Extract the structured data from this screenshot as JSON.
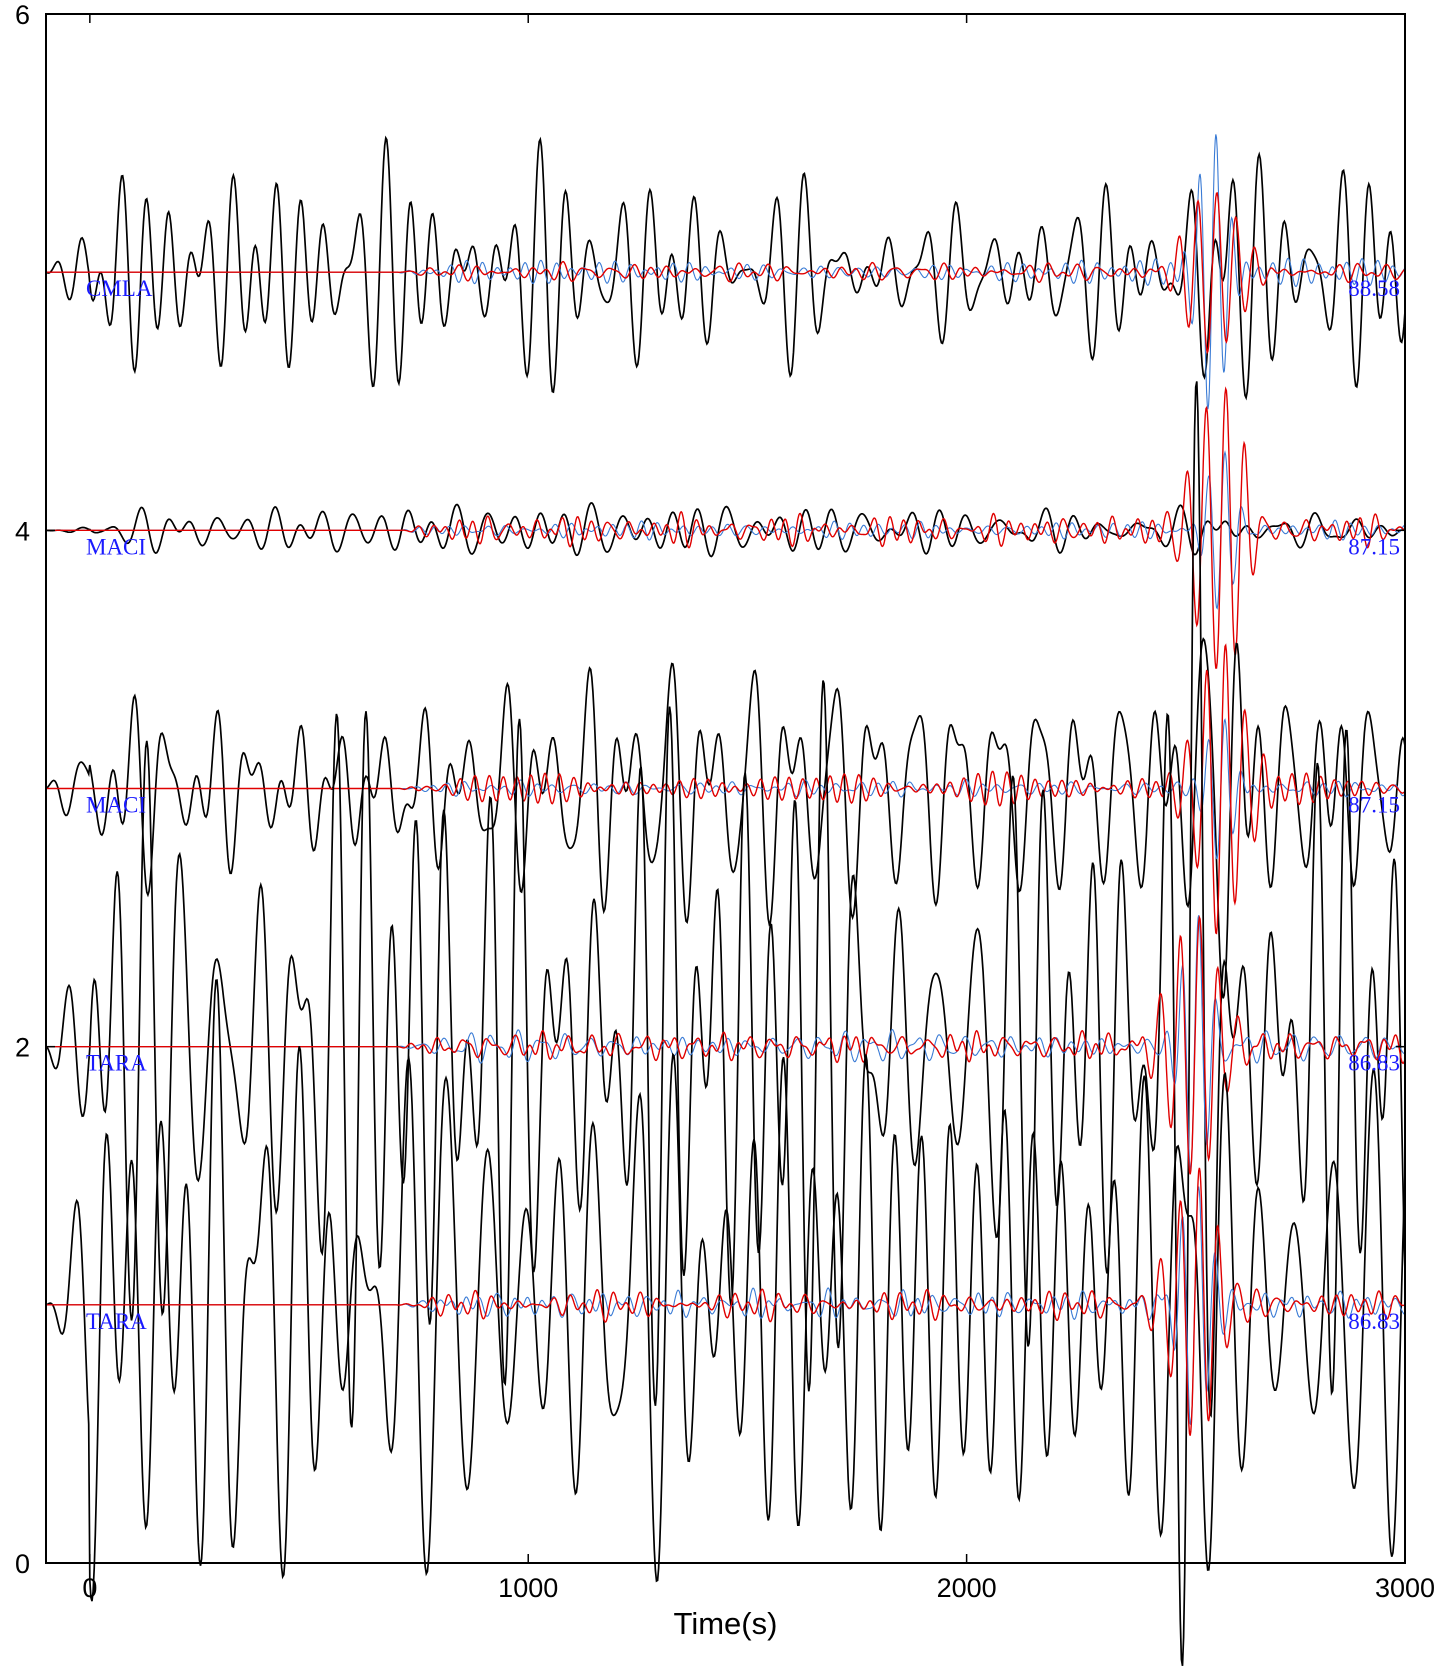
{
  "chart_data": {
    "type": "line",
    "title": "",
    "xlabel": "Time(s)",
    "ylabel": "",
    "xlim": [
      -100,
      3000
    ],
    "ylim": [
      0,
      6
    ],
    "xticks": [
      0,
      1000,
      2000,
      3000
    ],
    "yticks": [
      0,
      2,
      4,
      6
    ],
    "grid": false,
    "legend": "none",
    "colors": {
      "observed": "#000000",
      "synthetic_blue": "#3a7bd5",
      "synthetic_red": "#e00000",
      "label": "#1a1aff"
    },
    "traces": [
      {
        "station": "CMLA",
        "distance": "88.58",
        "offset": 5.0,
        "observed_amp": 0.28,
        "blue_amp": 0.2,
        "red_amp": 0.13,
        "wave_start": 700,
        "arrival": 2560,
        "seed": 11
      },
      {
        "station": "MACI",
        "distance": "87.15",
        "offset": 4.0,
        "observed_amp": 0.06,
        "blue_amp": 0.12,
        "red_amp": 0.22,
        "wave_start": 700,
        "arrival": 2580,
        "seed": 23
      },
      {
        "station": "MACI",
        "distance": "87.15",
        "offset": 3.0,
        "observed_amp": 0.32,
        "blue_amp": 0.11,
        "red_amp": 0.21,
        "wave_start": 700,
        "arrival": 2580,
        "seed": 37
      },
      {
        "station": "TARA",
        "distance": "86.83",
        "offset": 2.0,
        "observed_amp": 0.85,
        "blue_amp": 0.2,
        "red_amp": 0.2,
        "wave_start": 700,
        "arrival": 2520,
        "seed": 53
      },
      {
        "station": "TARA",
        "distance": "86.83",
        "offset": 1.0,
        "observed_amp": 0.85,
        "blue_amp": 0.2,
        "red_amp": 0.2,
        "wave_start": 700,
        "arrival": 2520,
        "seed": 71
      }
    ]
  }
}
